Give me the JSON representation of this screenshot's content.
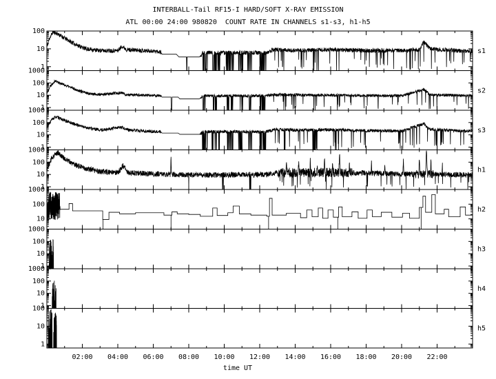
{
  "colors": {
    "fg": "#000000",
    "bg": "#ffffff"
  },
  "chart_data": {
    "type": "line",
    "title": "INTERBALL-Tail RF15-I HARD/SOFT X-RAY EMISSION",
    "subtitle": "ATL 00:00 24:00 980820  COUNT RATE IN CHANNELS s1-s3, h1-h5",
    "xlabel": "time UT",
    "y_scale": "log",
    "x_range_hours": [
      0,
      24
    ],
    "x_tick_hours": [
      2,
      4,
      6,
      8,
      10,
      12,
      14,
      16,
      18,
      20,
      22
    ],
    "x_tick_labels": [
      "02:00",
      "04:00",
      "06:00",
      "08:00",
      "10:00",
      "12:00",
      "14:00",
      "16:00",
      "18:00",
      "20:00",
      "22:00"
    ],
    "panels": [
      {
        "name": "s1",
        "seed": 11,
        "style": "noisy",
        "ylim": [
          0.6,
          100
        ],
        "yticks": [
          1,
          10,
          100
        ],
        "noise_amp": 0.12,
        "envelope": [
          [
            0,
            12
          ],
          [
            0.15,
            40
          ],
          [
            0.35,
            90
          ],
          [
            0.6,
            70
          ],
          [
            1,
            40
          ],
          [
            1.6,
            18
          ],
          [
            2.2,
            10
          ],
          [
            3,
            8
          ],
          [
            4,
            8
          ],
          [
            4.25,
            14
          ],
          [
            4.5,
            9
          ],
          [
            5.5,
            8
          ],
          [
            6.4,
            7
          ],
          [
            6.5,
            5
          ],
          [
            7.3,
            5
          ],
          [
            7.45,
            3.5
          ],
          [
            8.6,
            3.5
          ],
          [
            8.8,
            6
          ],
          [
            12.4,
            6
          ],
          [
            12.7,
            9
          ],
          [
            14,
            8
          ],
          [
            16,
            9
          ],
          [
            18,
            8
          ],
          [
            20,
            8
          ],
          [
            21,
            9
          ],
          [
            21.25,
            25
          ],
          [
            21.6,
            10
          ],
          [
            23,
            8
          ],
          [
            24,
            7
          ]
        ],
        "quiet": [
          [
            6.45,
            8.65
          ]
        ],
        "dropouts": [
          [
            7.6,
            8.6,
            0.05
          ],
          [
            8.75,
            9.05,
            0.35
          ],
          [
            9.3,
            9.75,
            0.35
          ],
          [
            10.1,
            10.55,
            0.3
          ],
          [
            10.8,
            11.05,
            0.3
          ],
          [
            11.3,
            11.55,
            0.3
          ],
          [
            12,
            12.35,
            0.35
          ],
          [
            13.3,
            13.5,
            0.15
          ],
          [
            14.85,
            15.35,
            0.18
          ],
          [
            16.2,
            16.35,
            0.15
          ]
        ],
        "spray": [
          [
            12.7,
            24,
            0.04
          ]
        ],
        "spikes": [],
        "boosts": []
      },
      {
        "name": "s2",
        "seed": 22,
        "style": "noisy",
        "ylim": [
          0.6,
          1000
        ],
        "yticks": [
          1,
          10,
          100,
          1000
        ],
        "noise_amp": 0.12,
        "envelope": [
          [
            0,
            15
          ],
          [
            0.2,
            60
          ],
          [
            0.45,
            150
          ],
          [
            0.8,
            90
          ],
          [
            1.5,
            35
          ],
          [
            2.2,
            15
          ],
          [
            3,
            11
          ],
          [
            4.2,
            16
          ],
          [
            4.5,
            11
          ],
          [
            6.4,
            9
          ],
          [
            6.5,
            7
          ],
          [
            7.4,
            7
          ],
          [
            7.5,
            5
          ],
          [
            8.6,
            5
          ],
          [
            8.8,
            9
          ],
          [
            12.4,
            9
          ],
          [
            12.7,
            11
          ],
          [
            16,
            10
          ],
          [
            20,
            9
          ],
          [
            21.25,
            30
          ],
          [
            21.6,
            11
          ],
          [
            24,
            9
          ]
        ],
        "quiet": [
          [
            6.45,
            8.65
          ]
        ],
        "dropouts": [
          [
            7,
            7.05,
            0.5
          ],
          [
            8.75,
            9,
            0.3
          ],
          [
            9.35,
            9.6,
            0.3
          ],
          [
            10.15,
            10.5,
            0.25
          ],
          [
            10.85,
            11.05,
            0.25
          ],
          [
            11.35,
            11.5,
            0.25
          ],
          [
            12,
            12.3,
            0.3
          ],
          [
            13.3,
            13.45,
            0.12
          ],
          [
            14.9,
            15.3,
            0.12
          ],
          [
            16.25,
            16.4,
            0.12
          ]
        ],
        "spray": [
          [
            12.7,
            24,
            0.03
          ]
        ],
        "spikes": [],
        "boosts": []
      },
      {
        "name": "s3",
        "seed": 33,
        "style": "noisy",
        "ylim": [
          0.6,
          1000
        ],
        "yticks": [
          1,
          10,
          100,
          1000
        ],
        "noise_amp": 0.13,
        "envelope": [
          [
            0,
            40
          ],
          [
            0.25,
            150
          ],
          [
            0.5,
            300
          ],
          [
            0.9,
            170
          ],
          [
            1.5,
            80
          ],
          [
            2.2,
            40
          ],
          [
            3,
            24
          ],
          [
            4.2,
            40
          ],
          [
            4.6,
            25
          ],
          [
            5.5,
            20
          ],
          [
            6.4,
            18
          ],
          [
            6.5,
            14
          ],
          [
            7.4,
            14
          ],
          [
            7.5,
            11
          ],
          [
            8.6,
            11
          ],
          [
            8.8,
            18
          ],
          [
            12.4,
            18
          ],
          [
            12.8,
            28
          ],
          [
            14,
            24
          ],
          [
            16,
            26
          ],
          [
            18,
            22
          ],
          [
            20,
            20
          ],
          [
            21.25,
            80
          ],
          [
            21.6,
            28
          ],
          [
            23,
            22
          ],
          [
            24,
            20
          ]
        ],
        "quiet": [
          [
            6.45,
            8.65
          ]
        ],
        "dropouts": [
          [
            8.75,
            9.05,
            0.35
          ],
          [
            9.3,
            9.75,
            0.35
          ],
          [
            10.1,
            10.55,
            0.3
          ],
          [
            10.8,
            11.05,
            0.3
          ],
          [
            11.3,
            11.55,
            0.3
          ],
          [
            12,
            12.35,
            0.35
          ],
          [
            13.35,
            13.5,
            0.18
          ],
          [
            14.9,
            15.35,
            0.2
          ],
          [
            16.25,
            16.45,
            0.18
          ],
          [
            16.6,
            16.7,
            0.12
          ]
        ],
        "spray": [
          [
            12.8,
            24,
            0.035
          ]
        ],
        "spikes": [],
        "boosts": []
      },
      {
        "name": "h1",
        "seed": 44,
        "style": "noisy",
        "ylim": [
          0.6,
          1000
        ],
        "yticks": [
          1,
          10,
          100,
          1000
        ],
        "noise_amp": 0.22,
        "envelope": [
          [
            0,
            25
          ],
          [
            0.3,
            250
          ],
          [
            0.6,
            600
          ],
          [
            1,
            200
          ],
          [
            1.5,
            70
          ],
          [
            2.2,
            30
          ],
          [
            3,
            17
          ],
          [
            4,
            14
          ],
          [
            4.3,
            50
          ],
          [
            4.6,
            14
          ],
          [
            5.5,
            12
          ],
          [
            7,
            10
          ],
          [
            9,
            9
          ],
          [
            12.4,
            10
          ],
          [
            13,
            14
          ],
          [
            17,
            14
          ],
          [
            20,
            11
          ],
          [
            22.5,
            10
          ],
          [
            24,
            9
          ]
        ],
        "quiet": [],
        "dropouts": [
          [
            7.9,
            8,
            0.3
          ],
          [
            9.85,
            9.95,
            0.4
          ],
          [
            11.4,
            11.5,
            0.4
          ]
        ],
        "spray": [
          [
            13,
            24,
            0.03
          ]
        ],
        "spikes": [
          [
            7,
            300,
            0.015
          ],
          [
            13.5,
            150,
            0.02
          ],
          [
            14.2,
            120,
            0.02
          ],
          [
            14.85,
            250,
            0.02
          ],
          [
            15.25,
            100,
            0.015
          ],
          [
            15.65,
            180,
            0.02
          ],
          [
            16.1,
            130,
            0.015
          ],
          [
            16.5,
            600,
            0.025
          ],
          [
            17.05,
            90,
            0.015
          ],
          [
            18.3,
            100,
            0.015
          ],
          [
            19.05,
            80,
            0.015
          ],
          [
            20.1,
            180,
            0.02
          ],
          [
            21,
            220,
            0.02
          ],
          [
            21.4,
            700,
            0.03
          ],
          [
            21.65,
            150,
            0.015
          ],
          [
            22.3,
            100,
            0.015
          ]
        ],
        "boosts": [
          [
            13,
            17.2,
            1.8
          ],
          [
            20.8,
            21.8,
            1.5
          ]
        ]
      },
      {
        "name": "h2",
        "seed": 55,
        "style": "steps",
        "ylim": [
          2,
          1000
        ],
        "yticks": [
          10,
          100,
          1000
        ],
        "blob": [
          0,
          0.75,
          8,
          700
        ],
        "steps": [
          [
            0.75,
            45
          ],
          [
            1.25,
            110
          ],
          [
            1.45,
            35
          ],
          [
            3.15,
            9
          ],
          [
            3.5,
            28
          ],
          [
            4.1,
            22
          ],
          [
            5,
            26
          ],
          [
            6.6,
            18
          ],
          [
            7.05,
            30
          ],
          [
            7.35,
            22
          ],
          [
            8,
            20
          ],
          [
            8.65,
            15
          ],
          [
            9.35,
            55
          ],
          [
            9.6,
            17
          ],
          [
            10.2,
            26
          ],
          [
            10.5,
            75
          ],
          [
            10.85,
            22
          ],
          [
            11.5,
            18
          ],
          [
            12.4,
            15
          ],
          [
            12.55,
            250
          ],
          [
            12.7,
            18
          ],
          [
            13.5,
            24
          ],
          [
            14.3,
            12
          ],
          [
            14.65,
            40
          ],
          [
            14.95,
            14
          ],
          [
            15.3,
            55
          ],
          [
            15.55,
            11
          ],
          [
            15.85,
            40
          ],
          [
            16.15,
            13
          ],
          [
            16.45,
            65
          ],
          [
            16.65,
            14
          ],
          [
            17.2,
            30
          ],
          [
            17.55,
            11
          ],
          [
            18.05,
            40
          ],
          [
            18.35,
            14
          ],
          [
            18.85,
            28
          ],
          [
            19.45,
            13
          ],
          [
            20.05,
            24
          ],
          [
            20.45,
            11
          ],
          [
            21,
            60
          ],
          [
            21.2,
            350
          ],
          [
            21.35,
            28
          ],
          [
            21.7,
            450
          ],
          [
            21.9,
            22
          ],
          [
            22.4,
            45
          ],
          [
            22.65,
            14
          ],
          [
            23.3,
            65
          ],
          [
            23.6,
            18
          ]
        ],
        "downspikes": [
          3.17,
          7,
          12.5,
          16.4,
          21.1
        ]
      },
      {
        "name": "h3",
        "seed": 66,
        "style": "burst",
        "ylim": [
          0.6,
          1000
        ],
        "yticks": [
          1,
          10,
          100,
          1000
        ],
        "bursts": [
          [
            0.12,
            0.38,
            150
          ]
        ]
      },
      {
        "name": "h4",
        "seed": 77,
        "style": "burst",
        "ylim": [
          0.6,
          1000
        ],
        "yticks": [
          1,
          10,
          100,
          1000
        ],
        "bursts": [
          [
            0.3,
            0.52,
            120
          ]
        ]
      },
      {
        "name": "h5",
        "seed": 88,
        "style": "burst",
        "ylim": [
          0.6,
          100
        ],
        "yticks": [
          1,
          10,
          100
        ],
        "bursts": [
          [
            0.08,
            0.3,
            90
          ],
          [
            0.38,
            0.55,
            60
          ]
        ]
      }
    ]
  }
}
